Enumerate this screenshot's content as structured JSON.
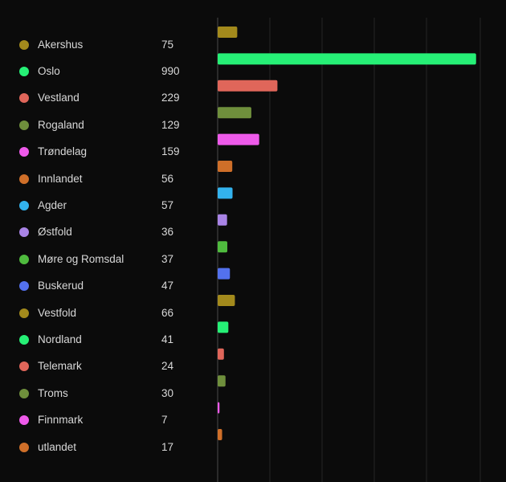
{
  "chart_data": {
    "type": "bar",
    "orientation": "horizontal",
    "categories": [
      "Akershus",
      "Oslo",
      "Vestland",
      "Rogaland",
      "Trøndelag",
      "Innlandet",
      "Agder",
      "Østfold",
      "Møre og Romsdal",
      "Buskerud",
      "Vestfold",
      "Nordland",
      "Telemark",
      "Troms",
      "Finnmark",
      "utlandet"
    ],
    "values": [
      75,
      990,
      229,
      129,
      159,
      56,
      57,
      36,
      37,
      47,
      66,
      41,
      24,
      30,
      7,
      17
    ],
    "colors": [
      "#a38a1c",
      "#26f076",
      "#e0665a",
      "#6f8f3c",
      "#ee5aea",
      "#cf6f29",
      "#33b3ee",
      "#a984e6",
      "#4fbb3e",
      "#5371ed",
      "#a38a1c",
      "#26f076",
      "#e0665a",
      "#6f8f3c",
      "#ee5aea",
      "#cf6f29"
    ],
    "xlim": [
      0,
      1000
    ],
    "grid": true,
    "legend": "left"
  }
}
